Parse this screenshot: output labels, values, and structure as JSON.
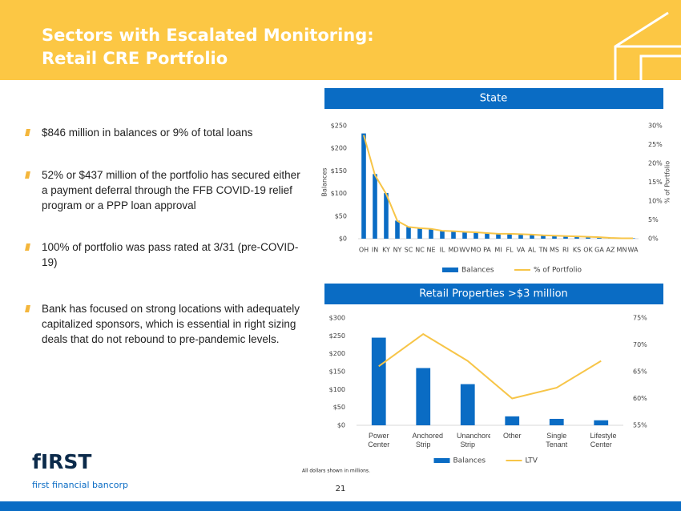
{
  "header": {
    "title": [
      "Sectors with Escalated Monitoring:",
      "Retail CRE Portfolio"
    ]
  },
  "bullets": [
    "$846 million in balances or 9% of total loans",
    "52% or $437 million of the portfolio has secured either a payment deferral through the FFB COVID-19 relief program or a PPP loan approval",
    "100% of portfolio was pass rated at 3/31 (pre-COVID-19)",
    "Bank has focused on strong locations with adequately capitalized sponsors, which is essential in right sizing deals that do not rebound to pre-pandemic levels."
  ],
  "footer": {
    "logo": "fIRST",
    "company": "first financial bancorp",
    "note": "All dollars shown in millions.",
    "page": "21"
  },
  "chart_data": [
    {
      "type": "bar",
      "title": "State",
      "y_label": "Balances",
      "y2_label": "% of Portfolio",
      "categories": [
        "OH",
        "IN",
        "KY",
        "NY",
        "SC",
        "NC",
        "NE",
        "IL",
        "MD",
        "WV",
        "MO",
        "PA",
        "MI",
        "FL",
        "VA",
        "AL",
        "TN",
        "MS",
        "RI",
        "KS",
        "OK",
        "GA",
        "AZ",
        "MN",
        "WA"
      ],
      "series": [
        {
          "name": "Balances",
          "type": "bar",
          "color": "#0a6cc4",
          "values": [
            233,
            143,
            101,
            40,
            26,
            24,
            22,
            18,
            17,
            15,
            14,
            13,
            11,
            11,
            10,
            9,
            8,
            7,
            6,
            5,
            4,
            3,
            2,
            1,
            1
          ]
        },
        {
          "name": "% of Portfolio",
          "type": "line",
          "axis": "y2",
          "color": "#f7c548",
          "values": [
            27.5,
            16.9,
            11.9,
            4.7,
            3.1,
            2.8,
            2.6,
            2.1,
            2.0,
            1.8,
            1.7,
            1.5,
            1.3,
            1.3,
            1.2,
            1.1,
            0.9,
            0.8,
            0.7,
            0.6,
            0.5,
            0.4,
            0.2,
            0.1,
            0.1
          ]
        }
      ],
      "ylim": [
        0,
        250
      ],
      "yticks": [
        {
          "value": 0,
          "label": "$0"
        },
        {
          "value": 50,
          "label": "$50"
        },
        {
          "value": 100,
          "label": "$100"
        },
        {
          "value": 150,
          "label": "$150"
        },
        {
          "value": 200,
          "label": "$200"
        },
        {
          "value": 250,
          "label": "$250"
        }
      ],
      "y2lim": [
        0,
        30
      ],
      "y2ticks": [
        {
          "value": 0,
          "label": "0%"
        },
        {
          "value": 5,
          "label": "5%"
        },
        {
          "value": 10,
          "label": "10%"
        },
        {
          "value": 15,
          "label": "15%"
        },
        {
          "value": 20,
          "label": "20%"
        },
        {
          "value": 25,
          "label": "25%"
        },
        {
          "value": 30,
          "label": "30%"
        }
      ],
      "legend": "bottom"
    },
    {
      "type": "bar",
      "title": "Retail Properties >$3 million",
      "categories": [
        "Power Center",
        "Anchored Strip",
        "Unanchored Strip",
        "Other",
        "Single Tenant",
        "Lifestyle Center"
      ],
      "series": [
        {
          "name": "Balances",
          "type": "bar",
          "color": "#0a6cc4",
          "values": [
            245,
            160,
            115,
            25,
            18,
            14
          ]
        },
        {
          "name": "LTV",
          "type": "line",
          "axis": "y2",
          "color": "#f7c548",
          "values": [
            66,
            72,
            67,
            60,
            62,
            67
          ]
        }
      ],
      "ylim": [
        0,
        300
      ],
      "yticks": [
        {
          "value": 0,
          "label": "$0"
        },
        {
          "value": 50,
          "label": "$50"
        },
        {
          "value": 100,
          "label": "$100"
        },
        {
          "value": 150,
          "label": "$150"
        },
        {
          "value": 200,
          "label": "$200"
        },
        {
          "value": 250,
          "label": "$250"
        },
        {
          "value": 300,
          "label": "$300"
        }
      ],
      "y2lim": [
        55,
        75
      ],
      "y2ticks": [
        {
          "value": 55,
          "label": "55%"
        },
        {
          "value": 60,
          "label": "60%"
        },
        {
          "value": 65,
          "label": "65%"
        },
        {
          "value": 70,
          "label": "70%"
        },
        {
          "value": 75,
          "label": "75%"
        }
      ],
      "legend": "bottom"
    }
  ]
}
